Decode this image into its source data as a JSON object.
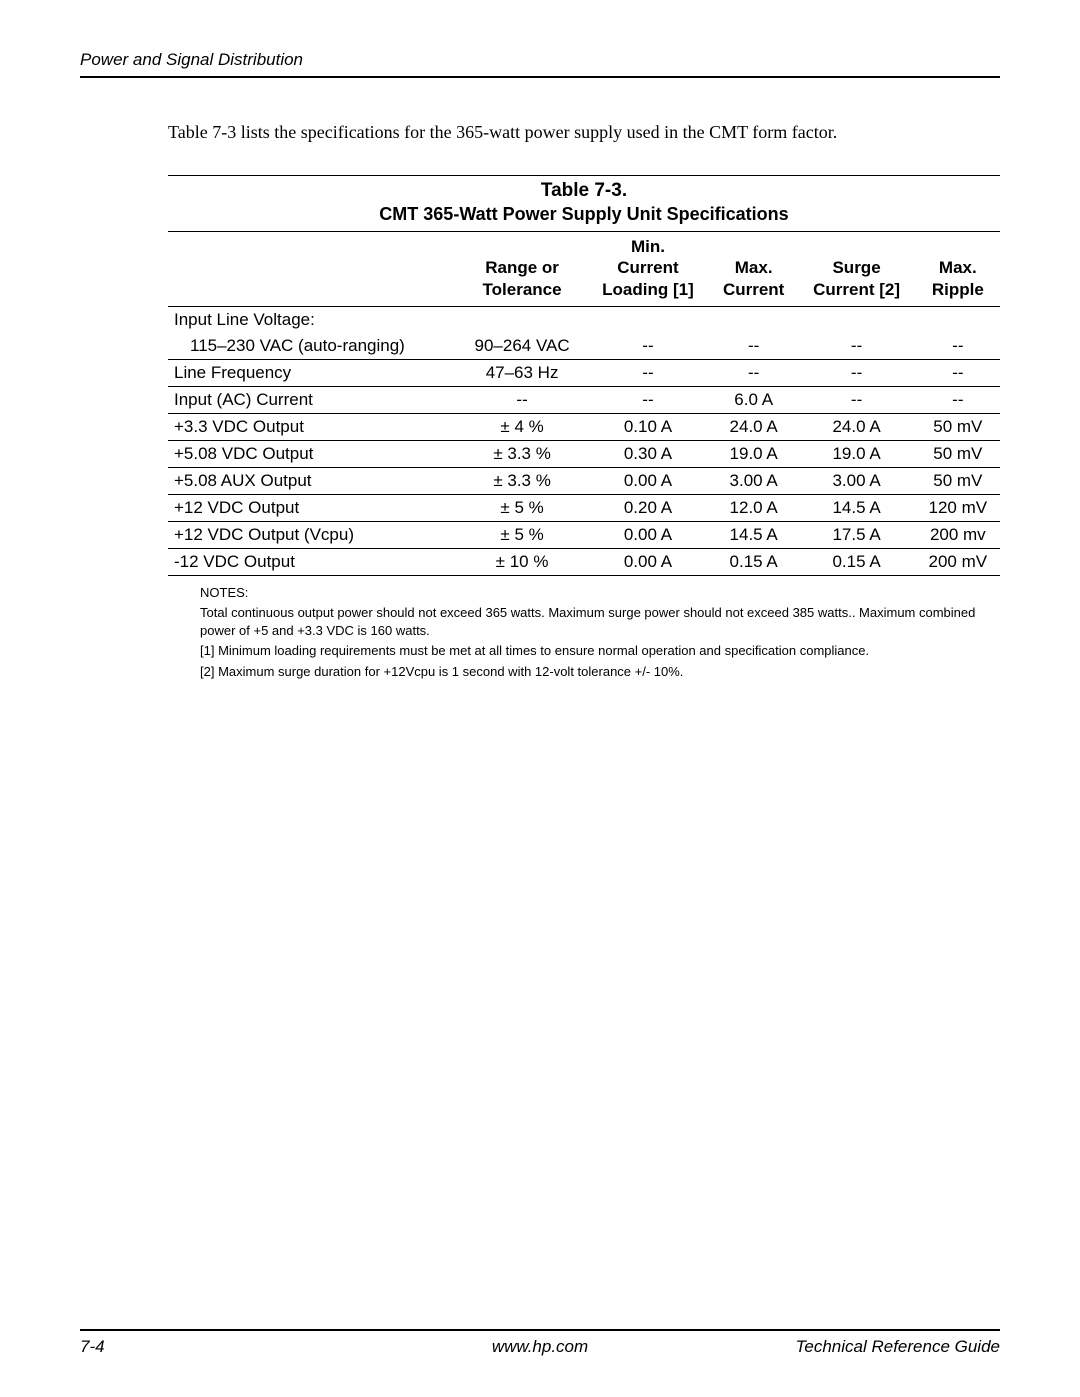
{
  "header": {
    "title": "Power and Signal Distribution"
  },
  "intro": "Table 7-3 lists the specifications for the 365-watt power supply used in the CMT form factor.",
  "table": {
    "title": "Table 7-3.",
    "subtitle": "CMT 365-Watt Power Supply Unit Specifications",
    "headers": {
      "c0": "",
      "c1": "Range or\nTolerance",
      "c2": "Min.\nCurrent\nLoading [1]",
      "c3": "Max.\nCurrent",
      "c4": "Surge\nCurrent [2]",
      "c5": "Max.\nRipple"
    },
    "rows": [
      {
        "label": "Input Line Voltage:",
        "c1": "",
        "c2": "",
        "c3": "",
        "c4": "",
        "c5": "",
        "noborder": true
      },
      {
        "label": "115–230 VAC (auto-ranging)",
        "indent": true,
        "c1": "90–264 VAC",
        "c2": "--",
        "c3": "--",
        "c4": "--",
        "c5": "--"
      },
      {
        "label": "Line Frequency",
        "c1": "47–63 Hz",
        "c2": "--",
        "c3": "--",
        "c4": "--",
        "c5": "--"
      },
      {
        "label": "Input (AC) Current",
        "c1": "--",
        "c2": "--",
        "c3": "6.0 A",
        "c4": "--",
        "c5": "--"
      },
      {
        "label": "+3.3 VDC Output",
        "c1": "± 4 %",
        "c2": "0.10 A",
        "c3": "24.0 A",
        "c4": "24.0 A",
        "c5": "50 mV"
      },
      {
        "label": "+5.08 VDC Output",
        "c1": "± 3.3 %",
        "c2": "0.30 A",
        "c3": "19.0 A",
        "c4": "19.0 A",
        "c5": "50 mV"
      },
      {
        "label": "+5.08 AUX Output",
        "c1": "± 3.3 %",
        "c2": "0.00 A",
        "c3": "3.00 A",
        "c4": "3.00 A",
        "c5": "50 mV"
      },
      {
        "label": "+12 VDC Output",
        "c1": "± 5 %",
        "c2": "0.20 A",
        "c3": "12.0 A",
        "c4": "14.5 A",
        "c5": "120 mV"
      },
      {
        "label": "+12 VDC Output (Vcpu)",
        "c1": "± 5 %",
        "c2": "0.00 A",
        "c3": "14.5 A",
        "c4": "17.5 A",
        "c5": "200 mv"
      },
      {
        "label": "-12 VDC Output",
        "c1": "± 10 %",
        "c2": "0.00 A",
        "c3": "0.15 A",
        "c4": "0.15 A",
        "c5": "200 mV",
        "last": true
      }
    ]
  },
  "notes": {
    "heading": "NOTES:",
    "n1": "Total continuous output power should not exceed 365 watts. Maximum surge power should not exceed 385 watts.. Maximum combined power of +5 and +3.3 VDC is 160 watts.",
    "n2": "[1] Minimum loading requirements must be met at all times to ensure normal operation and specification compliance.",
    "n3": "[2] Maximum surge duration for +12Vcpu is 1 second with 12-volt tolerance +/- 10%."
  },
  "footer": {
    "left": "7-4",
    "center": "www.hp.com",
    "right": "Technical Reference Guide"
  }
}
